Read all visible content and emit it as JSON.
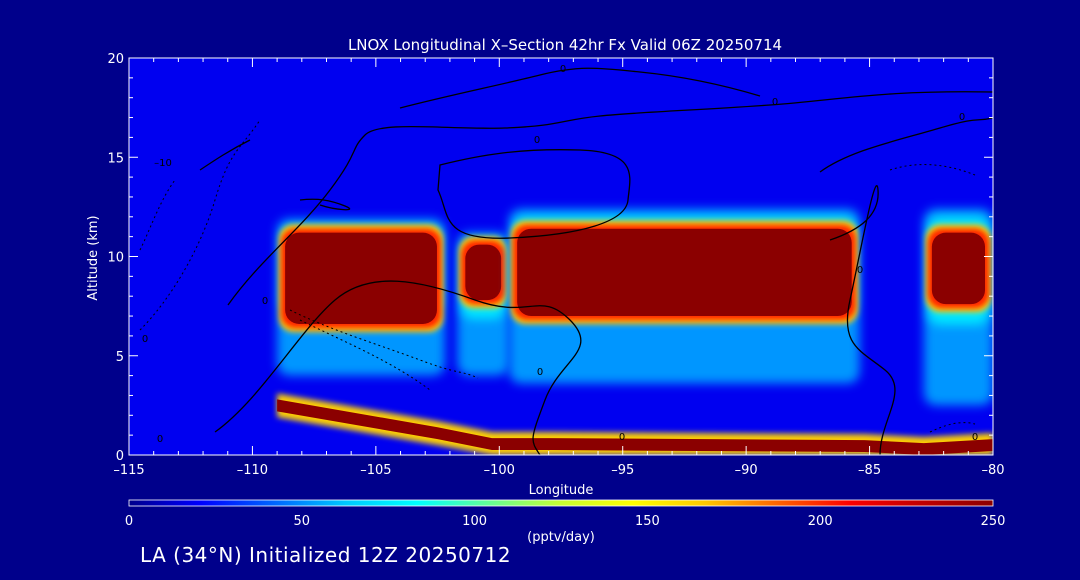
{
  "chart_data": {
    "type": "heatmap",
    "title": "LNOX Longitudinal X–Section 42hr  Fx Valid 06Z 20250714",
    "xlabel": "Longitude",
    "ylabel": "Altitude (km)",
    "xlim": [
      -115,
      -80
    ],
    "ylim": [
      0,
      20
    ],
    "x_ticks": [
      "–115",
      "–110",
      "–105",
      "–100",
      "–95",
      "–90",
      "–85",
      "–80"
    ],
    "y_ticks": [
      "0",
      "5",
      "10",
      "15",
      "20"
    ],
    "colorbar": {
      "min": 0,
      "max": 250,
      "label": "(pptv/day)",
      "ticks": [
        "0",
        "50",
        "100",
        "150",
        "200",
        "250"
      ],
      "colors": [
        "#00008b",
        "#0000ff",
        "#0064ff",
        "#00c8ff",
        "#00ffff",
        "#64ff96",
        "#c8ff32",
        "#ffff00",
        "#ffc800",
        "#ff6400",
        "#ff0000",
        "#c00000",
        "#8b0000"
      ]
    },
    "plumes": [
      {
        "lon_min": -109,
        "lon_max": -102.2,
        "alt_min": 4,
        "alt_max": 11.9,
        "peak_alt_min": 6.6,
        "peak_alt_max": 11.2
      },
      {
        "lon_min": -101.7,
        "lon_max": -99.6,
        "alt_min": 4,
        "alt_max": 11.2,
        "peak_alt_min": 7.8,
        "peak_alt_max": 10.6
      },
      {
        "lon_min": -99.6,
        "lon_max": -85.4,
        "alt_min": 3.6,
        "alt_max": 12.4,
        "peak_alt_min": 7,
        "peak_alt_max": 11.4
      },
      {
        "lon_min": -82.8,
        "lon_max": -80,
        "alt_min": 2.5,
        "alt_max": 12.4,
        "peak_alt_min": 7.6,
        "peak_alt_max": 11.2
      }
    ],
    "surface_band": [
      {
        "lon": -109,
        "peak_alt": 2.5
      },
      {
        "lon": -102.5,
        "peak_alt": 1.1
      },
      {
        "lon": -100.3,
        "peak_alt": 0.55
      },
      {
        "lon": -98,
        "peak_alt": 0.55
      },
      {
        "lon": -85.2,
        "peak_alt": 0.45
      },
      {
        "lon": -82.8,
        "peak_alt": 0.3
      },
      {
        "lon": -80,
        "peak_alt": 0.5
      }
    ],
    "contour_labels": [
      "0",
      "0",
      "0",
      "0",
      "0",
      "0",
      "0",
      "0",
      "0",
      "0",
      "–10",
      "0"
    ]
  },
  "footer": {
    "text": "LA (34°N) Initialized 12Z 20250712"
  }
}
